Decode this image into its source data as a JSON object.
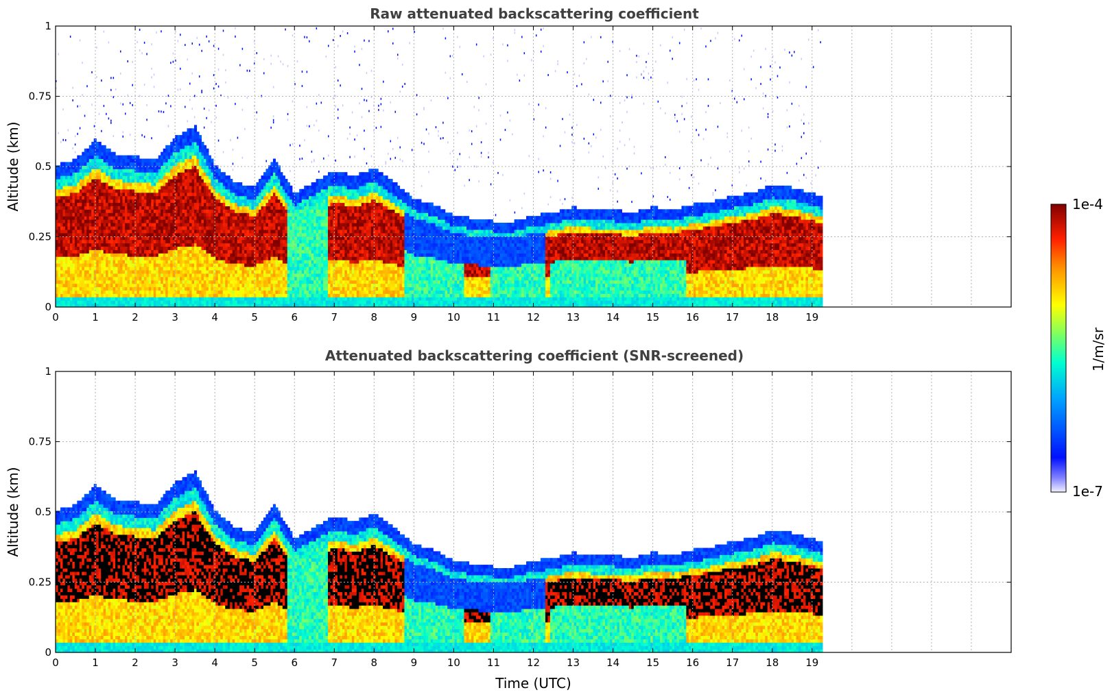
{
  "chart_data": [
    {
      "type": "heatmap",
      "title": "Raw attenuated backscattering coefficient",
      "ylabel": "Altitude (km)",
      "xlabel": "",
      "xlim": [
        0,
        24
      ],
      "ylim": [
        0,
        1
      ],
      "data_end_time": 19.2,
      "screened": false,
      "grid": true
    },
    {
      "type": "heatmap",
      "title": "Attenuated backscattering coefficient (SNR-screened)",
      "ylabel": "Altitude (km)",
      "xlabel": "Time (UTC)",
      "xlim": [
        0,
        24
      ],
      "ylim": [
        0,
        1
      ],
      "data_end_time": 19.2,
      "screened": true,
      "grid": true
    }
  ],
  "x_ticks": [
    "0",
    "1",
    "2",
    "3",
    "4",
    "5",
    "6",
    "7",
    "8",
    "9",
    "10",
    "11",
    "12",
    "13",
    "14",
    "15",
    "16",
    "17",
    "18",
    "19"
  ],
  "y_ticks": [
    "0",
    "0.25",
    "0.5",
    "0.75",
    "1"
  ],
  "y_tick_values": [
    0,
    0.25,
    0.5,
    0.75,
    1
  ],
  "colorbar": {
    "label": "1/m/sr",
    "max_label": "1e-4",
    "min_label": "1e-7",
    "scale": "log",
    "range": [
      1e-07,
      0.0001
    ],
    "colormap": "jet-with-white-low",
    "saturation_color": "#000000"
  },
  "layer_profile": {
    "time": [
      0,
      0.5,
      1,
      1.5,
      2,
      2.5,
      3,
      3.5,
      4,
      4.5,
      5,
      5.5,
      6,
      6.5,
      7,
      7.5,
      8,
      8.5,
      9,
      9.5,
      10,
      10.5,
      11,
      11.5,
      12,
      12.5,
      13,
      13.5,
      14,
      14.5,
      15,
      15.5,
      16,
      16.5,
      17,
      17.5,
      18,
      18.5,
      19.2
    ],
    "top_km": [
      0.48,
      0.5,
      0.57,
      0.52,
      0.51,
      0.5,
      0.58,
      0.62,
      0.48,
      0.42,
      0.4,
      0.5,
      0.38,
      0.42,
      0.46,
      0.44,
      0.47,
      0.42,
      0.36,
      0.34,
      0.3,
      0.29,
      0.28,
      0.28,
      0.3,
      0.31,
      0.33,
      0.32,
      0.32,
      0.31,
      0.33,
      0.32,
      0.34,
      0.35,
      0.37,
      0.38,
      0.41,
      0.4,
      0.37
    ]
  }
}
